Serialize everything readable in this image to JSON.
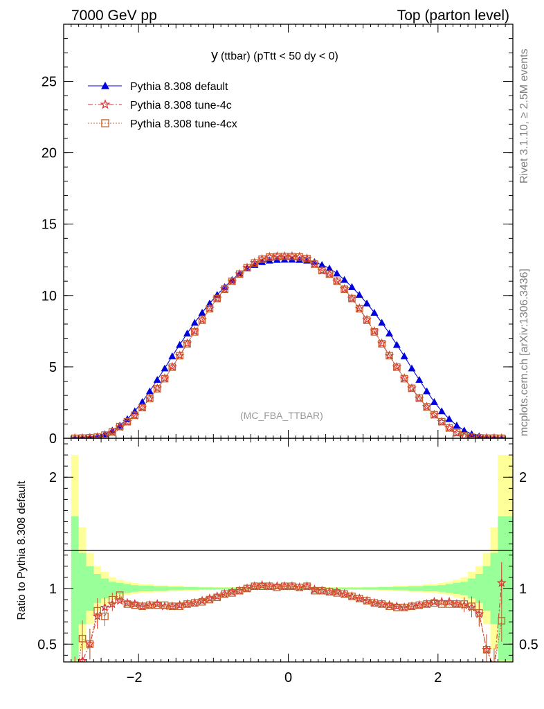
{
  "header": {
    "left": "7000 GeV pp",
    "right": "Top (parton level)"
  },
  "side_labels": {
    "rivet": "Rivet 3.1.10, ≥ 2.5M events",
    "mcplots": "mcplots.cern.ch [arXiv:1306.3436]"
  },
  "chart_data": [
    {
      "type": "line",
      "title_main": "y",
      "title_rest": "(ttbar) (pTtt < 50 dy < 0)",
      "watermark": "(MC_FBA_TTBAR)",
      "xlim": [
        -3.0,
        3.0
      ],
      "ylim": [
        0,
        29
      ],
      "x_ticks": [
        -2,
        0,
        2
      ],
      "y_ticks": [
        0,
        5,
        10,
        15,
        20,
        25
      ],
      "legend_position": "top-left",
      "series": [
        {
          "name": "Pythia 8.308 default",
          "color": "#0000dd",
          "marker": "triangle",
          "x": [
            -2.85,
            -2.75,
            -2.65,
            -2.55,
            -2.45,
            -2.35,
            -2.25,
            -2.15,
            -2.05,
            -1.95,
            -1.85,
            -1.75,
            -1.65,
            -1.55,
            -1.45,
            -1.35,
            -1.25,
            -1.15,
            -1.05,
            -0.95,
            -0.85,
            -0.75,
            -0.65,
            -0.55,
            -0.45,
            -0.35,
            -0.25,
            -0.15,
            -0.05,
            0.05,
            0.15,
            0.25,
            0.35,
            0.45,
            0.55,
            0.65,
            0.75,
            0.85,
            0.95,
            1.05,
            1.15,
            1.25,
            1.35,
            1.45,
            1.55,
            1.65,
            1.75,
            1.85,
            1.95,
            2.05,
            2.15,
            2.25,
            2.35,
            2.45,
            2.55,
            2.65,
            2.75,
            2.85
          ],
          "values": [
            0.02,
            0.04,
            0.08,
            0.15,
            0.3,
            0.55,
            0.9,
            1.35,
            1.9,
            2.55,
            3.3,
            4.1,
            4.9,
            5.75,
            6.55,
            7.35,
            8.1,
            8.8,
            9.45,
            10.05,
            10.6,
            11.1,
            11.55,
            11.9,
            12.15,
            12.35,
            12.45,
            12.5,
            12.52,
            12.52,
            12.5,
            12.45,
            12.35,
            12.15,
            11.9,
            11.55,
            11.1,
            10.6,
            10.05,
            9.45,
            8.8,
            8.1,
            7.35,
            6.55,
            5.75,
            4.9,
            4.1,
            3.3,
            2.55,
            1.9,
            1.35,
            0.9,
            0.55,
            0.3,
            0.15,
            0.08,
            0.04,
            0.02
          ]
        },
        {
          "name": "Pythia 8.308 tune-4c",
          "color": "#dd3333",
          "marker": "star",
          "x": [
            -2.85,
            -2.75,
            -2.65,
            -2.55,
            -2.45,
            -2.35,
            -2.25,
            -2.15,
            -2.05,
            -1.95,
            -1.85,
            -1.75,
            -1.65,
            -1.55,
            -1.45,
            -1.35,
            -1.25,
            -1.15,
            -1.05,
            -0.95,
            -0.85,
            -0.75,
            -0.65,
            -0.55,
            -0.45,
            -0.35,
            -0.25,
            -0.15,
            -0.05,
            0.05,
            0.15,
            0.25,
            0.35,
            0.45,
            0.55,
            0.65,
            0.75,
            0.85,
            0.95,
            1.05,
            1.15,
            1.25,
            1.35,
            1.45,
            1.55,
            1.65,
            1.75,
            1.85,
            1.95,
            2.05,
            2.15,
            2.25,
            2.35,
            2.45,
            2.55,
            2.65,
            2.75,
            2.85
          ],
          "values": [
            0.0,
            0.01,
            0.03,
            0.07,
            0.18,
            0.42,
            0.78,
            1.15,
            1.6,
            2.15,
            2.8,
            3.5,
            4.2,
            5.0,
            5.8,
            6.65,
            7.5,
            8.3,
            9.1,
            9.8,
            10.45,
            11.0,
            11.5,
            11.95,
            12.3,
            12.55,
            12.7,
            12.75,
            12.75,
            12.75,
            12.72,
            12.6,
            12.2,
            11.75,
            11.5,
            11.0,
            10.45,
            9.8,
            9.1,
            8.3,
            7.5,
            6.65,
            5.8,
            5.0,
            4.2,
            3.5,
            2.8,
            2.2,
            1.65,
            1.15,
            0.72,
            0.38,
            0.16,
            0.06,
            0.02,
            0.01,
            0.01,
            0.0
          ]
        },
        {
          "name": "Pythia 8.308 tune-4cx",
          "color": "#c0602a",
          "marker": "open-square",
          "x": [
            -2.85,
            -2.75,
            -2.65,
            -2.55,
            -2.45,
            -2.35,
            -2.25,
            -2.15,
            -2.05,
            -1.95,
            -1.85,
            -1.75,
            -1.65,
            -1.55,
            -1.45,
            -1.35,
            -1.25,
            -1.15,
            -1.05,
            -0.95,
            -0.85,
            -0.75,
            -0.65,
            -0.55,
            -0.45,
            -0.35,
            -0.25,
            -0.15,
            -0.05,
            0.05,
            0.15,
            0.25,
            0.35,
            0.45,
            0.55,
            0.65,
            0.75,
            0.85,
            0.95,
            1.05,
            1.15,
            1.25,
            1.35,
            1.45,
            1.55,
            1.65,
            1.75,
            1.85,
            1.95,
            2.05,
            2.15,
            2.25,
            2.35,
            2.45,
            2.55,
            2.65,
            2.75,
            2.85
          ],
          "values": [
            0.0,
            0.01,
            0.03,
            0.08,
            0.22,
            0.45,
            0.82,
            1.16,
            1.61,
            2.15,
            2.79,
            3.47,
            4.17,
            4.98,
            5.79,
            6.62,
            7.45,
            8.27,
            9.07,
            9.79,
            10.44,
            11.0,
            11.5,
            11.95,
            12.28,
            12.54,
            12.69,
            12.73,
            12.74,
            12.73,
            12.7,
            12.58,
            12.2,
            11.75,
            11.5,
            11.0,
            10.44,
            9.79,
            9.07,
            8.27,
            7.45,
            6.62,
            5.79,
            4.98,
            4.17,
            3.5,
            2.82,
            2.2,
            1.65,
            1.16,
            0.72,
            0.4,
            0.18,
            0.07,
            0.03,
            0.01,
            0.01,
            0.0
          ]
        }
      ]
    },
    {
      "type": "line",
      "ylabel": "Ratio to Pythia 8.308 default",
      "xlim": [
        -3.0,
        3.0
      ],
      "ylim": [
        0.34,
        2.35
      ],
      "x_ticks": [
        -2,
        0,
        2
      ],
      "y_ticks": [
        0.5,
        1,
        2
      ],
      "reference_line": 1,
      "bands": {
        "x": [
          -2.9,
          -2.8,
          -2.7,
          -2.6,
          -2.5,
          -2.4,
          -2.3,
          -2.2,
          -2.1,
          -2.0,
          -1.8,
          -1.6,
          -1.4,
          -1.2,
          -1.0,
          -0.5,
          0.5,
          1.0,
          1.2,
          1.4,
          1.6,
          1.8,
          2.0,
          2.1,
          2.2,
          2.3,
          2.4,
          2.5,
          2.6,
          2.7,
          2.8,
          2.9,
          3.0
        ],
        "yellow_halfwidth": [
          1.2,
          0.55,
          0.32,
          0.2,
          0.15,
          0.1,
          0.08,
          0.06,
          0.05,
          0.04,
          0.03,
          0.025,
          0.02,
          0.015,
          0.012,
          0.008,
          0.012,
          0.015,
          0.02,
          0.025,
          0.03,
          0.04,
          0.05,
          0.06,
          0.08,
          0.1,
          0.15,
          0.2,
          0.32,
          0.55,
          1.2,
          1.2,
          1.2
        ],
        "green_halfwidth": [
          0.65,
          0.32,
          0.2,
          0.13,
          0.09,
          0.06,
          0.05,
          0.04,
          0.03,
          0.025,
          0.02,
          0.015,
          0.012,
          0.01,
          0.008,
          0.005,
          0.008,
          0.01,
          0.012,
          0.015,
          0.02,
          0.025,
          0.03,
          0.04,
          0.05,
          0.06,
          0.09,
          0.13,
          0.2,
          0.32,
          0.65,
          0.65,
          0.65
        ]
      },
      "series": [
        {
          "name": "Pythia 8.308 tune-4c",
          "color": "#dd3333",
          "marker": "star",
          "x": [
            -2.85,
            -2.75,
            -2.65,
            -2.55,
            -2.45,
            -2.35,
            -2.25,
            -2.15,
            -2.05,
            -1.95,
            -1.85,
            -1.75,
            -1.65,
            -1.55,
            -1.45,
            -1.35,
            -1.25,
            -1.15,
            -1.05,
            -0.95,
            -0.85,
            -0.75,
            -0.65,
            -0.55,
            -0.45,
            -0.35,
            -0.25,
            -0.15,
            -0.05,
            0.05,
            0.15,
            0.25,
            0.35,
            0.45,
            0.55,
            0.65,
            0.75,
            0.85,
            0.95,
            1.05,
            1.15,
            1.25,
            1.35,
            1.45,
            1.55,
            1.65,
            1.75,
            1.85,
            1.95,
            2.05,
            2.15,
            2.25,
            2.35,
            2.45,
            2.55,
            2.65,
            2.75,
            2.85
          ],
          "values": [
            0.2,
            0.35,
            0.5,
            0.75,
            0.83,
            0.86,
            0.89,
            0.87,
            0.86,
            0.84,
            0.85,
            0.86,
            0.84,
            0.84,
            0.85,
            0.86,
            0.87,
            0.89,
            0.91,
            0.93,
            0.95,
            0.97,
            0.98,
            1.0,
            1.02,
            1.03,
            1.02,
            1.02,
            1.02,
            1.02,
            1.01,
            1.02,
            0.99,
            0.98,
            0.97,
            0.97,
            0.95,
            0.93,
            0.91,
            0.89,
            0.87,
            0.86,
            0.85,
            0.84,
            0.83,
            0.84,
            0.85,
            0.86,
            0.88,
            0.88,
            0.88,
            0.86,
            0.85,
            0.83,
            0.77,
            0.45,
            0.28,
            1.05
          ]
        },
        {
          "name": "Pythia 8.308 tune-4cx",
          "color": "#c0602a",
          "marker": "open-square",
          "x": [
            -2.85,
            -2.75,
            -2.65,
            -2.55,
            -2.45,
            -2.35,
            -2.25,
            -2.15,
            -2.05,
            -1.95,
            -1.85,
            -1.75,
            -1.65,
            -1.55,
            -1.45,
            -1.35,
            -1.25,
            -1.15,
            -1.05,
            -0.95,
            -0.85,
            -0.75,
            -0.65,
            -0.55,
            -0.45,
            -0.35,
            -0.25,
            -0.15,
            -0.05,
            0.05,
            0.15,
            0.25,
            0.35,
            0.45,
            0.55,
            0.65,
            0.75,
            0.85,
            0.95,
            1.05,
            1.15,
            1.25,
            1.35,
            1.45,
            1.55,
            1.65,
            1.75,
            1.85,
            1.95,
            2.05,
            2.15,
            2.25,
            2.35,
            2.45,
            2.55,
            2.65,
            2.75,
            2.85
          ],
          "values": [
            0.12,
            0.55,
            0.5,
            0.8,
            0.75,
            0.9,
            0.94,
            0.86,
            0.85,
            0.84,
            0.85,
            0.85,
            0.85,
            0.84,
            0.84,
            0.86,
            0.87,
            0.88,
            0.9,
            0.92,
            0.95,
            0.96,
            0.98,
            1.0,
            1.02,
            1.02,
            1.02,
            1.01,
            1.02,
            1.02,
            1.01,
            1.02,
            0.98,
            0.98,
            0.97,
            0.96,
            0.95,
            0.93,
            0.91,
            0.89,
            0.87,
            0.86,
            0.84,
            0.83,
            0.83,
            0.84,
            0.85,
            0.86,
            0.87,
            0.86,
            0.86,
            0.86,
            0.86,
            0.84,
            0.78,
            0.45,
            0.3,
            0.71
          ]
        }
      ]
    }
  ]
}
